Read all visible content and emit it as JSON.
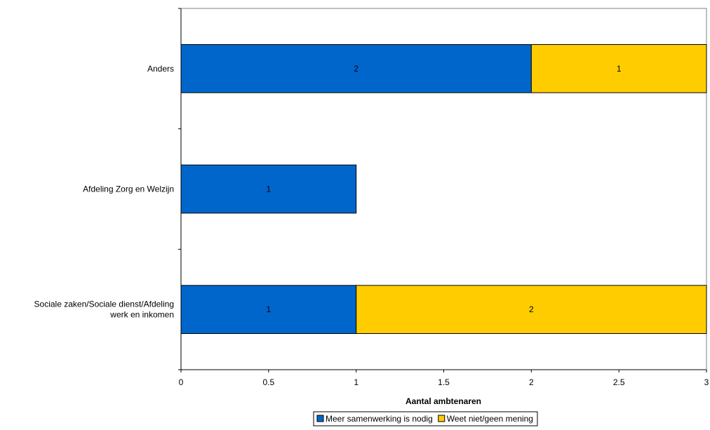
{
  "chart_data": {
    "type": "bar",
    "orientation": "horizontal",
    "stacked": true,
    "categories": [
      "Sociale zaken/Sociale dienst/Afdeling werk en inkomen",
      "Afdeling Zorg en Welzijn",
      "Anders"
    ],
    "category_lines": [
      [
        "Sociale zaken/Sociale dienst/Afdeling",
        "werk en inkomen"
      ],
      [
        "Afdeling Zorg en Welzijn"
      ],
      [
        "Anders"
      ]
    ],
    "series": [
      {
        "name": "Meer samenwerking is nodig",
        "values": [
          1,
          1,
          2
        ],
        "color": "#0066CC"
      },
      {
        "name": "Weet niet/geen mening",
        "values": [
          2,
          0,
          1
        ],
        "color": "#FFCC00"
      }
    ],
    "xlabel": "Aantal ambtenaren",
    "ylabel": "",
    "xlim": [
      0,
      3
    ],
    "xticks": [
      "0",
      "0.5",
      "1",
      "1.5",
      "2",
      "2.5",
      "3"
    ],
    "grid": false,
    "legend_position": "bottom"
  }
}
